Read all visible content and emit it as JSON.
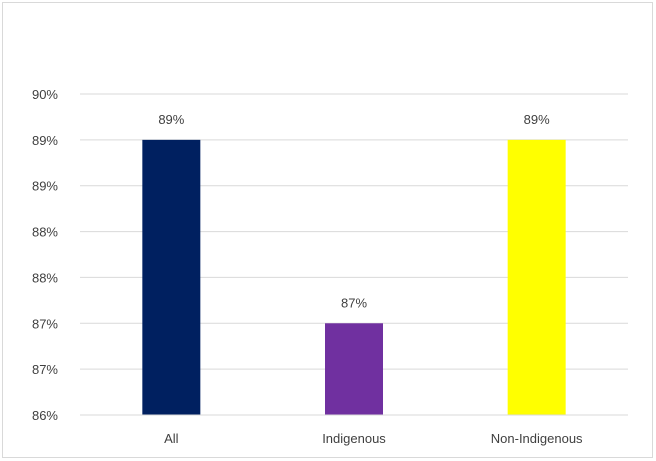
{
  "chart_data": {
    "type": "bar",
    "categories": [
      "All",
      "Indigenous",
      "Non-Indigenous"
    ],
    "values": [
      89,
      87,
      89
    ],
    "data_labels": [
      "89%",
      "87%",
      "89%"
    ],
    "y_tick_labels": [
      "86%",
      "87%",
      "87%",
      "88%",
      "88%",
      "89%",
      "89%",
      "90%"
    ],
    "ylim": [
      86,
      89.5
    ],
    "title": "",
    "xlabel": "",
    "ylabel": "",
    "grid": true,
    "legend": "none",
    "colors": [
      "#002060",
      "#7030a0",
      "#ffff00"
    ]
  }
}
